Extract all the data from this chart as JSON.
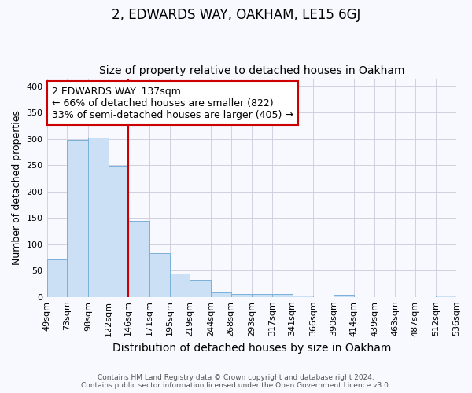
{
  "title": "2, EDWARDS WAY, OAKHAM, LE15 6GJ",
  "subtitle": "Size of property relative to detached houses in Oakham",
  "xlabel": "Distribution of detached houses by size in Oakham",
  "ylabel": "Number of detached properties",
  "footer_line1": "Contains HM Land Registry data © Crown copyright and database right 2024.",
  "footer_line2": "Contains public sector information licensed under the Open Government Licence v3.0.",
  "annotation_line1": "2 EDWARDS WAY: 137sqm",
  "annotation_line2": "← 66% of detached houses are smaller (822)",
  "annotation_line3": "33% of semi-detached houses are larger (405) →",
  "property_line_x": 146,
  "bar_left_edges": [
    49,
    73,
    98,
    122,
    146,
    171,
    195,
    219,
    244,
    268,
    293,
    317,
    341,
    366,
    390,
    414,
    439,
    463,
    487,
    512
  ],
  "bar_widths": [
    24,
    25,
    24,
    24,
    25,
    24,
    24,
    25,
    24,
    25,
    24,
    24,
    25,
    24,
    24,
    25,
    24,
    24,
    25,
    24
  ],
  "bar_heights": [
    71,
    298,
    303,
    249,
    144,
    83,
    45,
    32,
    9,
    6,
    6,
    6,
    3,
    0,
    4,
    0,
    0,
    0,
    0,
    3
  ],
  "tick_labels": [
    "49sqm",
    "73sqm",
    "98sqm",
    "122sqm",
    "146sqm",
    "171sqm",
    "195sqm",
    "219sqm",
    "244sqm",
    "268sqm",
    "293sqm",
    "317sqm",
    "341sqm",
    "366sqm",
    "390sqm",
    "414sqm",
    "439sqm",
    "463sqm",
    "487sqm",
    "512sqm",
    "536sqm"
  ],
  "bar_color": "#cce0f5",
  "bar_edge_color": "#7ab0d8",
  "vline_color": "#cc0000",
  "annotation_box_color": "#cc0000",
  "grid_color": "#d0d0e0",
  "ylim": [
    0,
    415
  ],
  "yticks": [
    0,
    50,
    100,
    150,
    200,
    250,
    300,
    350,
    400
  ],
  "background_color": "#f8f8ff",
  "title_fontsize": 12,
  "subtitle_fontsize": 10,
  "annotation_fontsize": 9,
  "ylabel_fontsize": 9,
  "xlabel_fontsize": 10,
  "tick_fontsize": 8
}
